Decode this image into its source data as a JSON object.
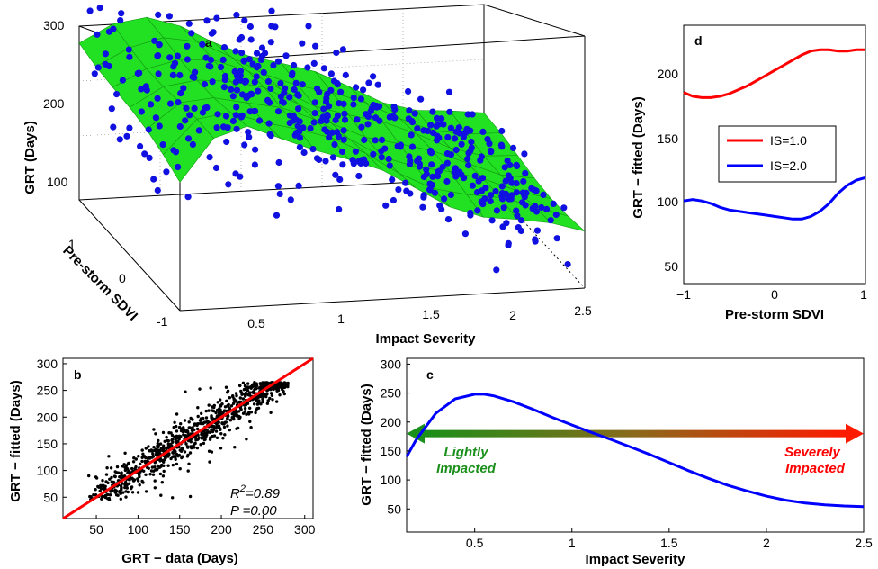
{
  "colors": {
    "points_a": "#1010e0",
    "surface": "#22e022",
    "red": "#ff0000",
    "blue": "#0000ff",
    "green": "#1a8f1a",
    "black": "#000000"
  },
  "chart_data": [
    {
      "panel": "a",
      "type": "scatter",
      "surface": "fitted 3-D surface (green) with data points (blue)",
      "xlabel": "Impact Severity",
      "ylabel": "Pre-storm SDVI",
      "zlabel": "GRT (Days)",
      "x_ticks": [
        "0.5",
        "1",
        "1.5",
        "2",
        "2.5"
      ],
      "y_ticks": [
        "-1",
        "0",
        "1"
      ],
      "z_ticks": [
        "100",
        "200",
        "300"
      ],
      "xlim": [
        0.1,
        2.5
      ],
      "ylim": [
        -1,
        1
      ],
      "zlim": [
        0,
        300
      ],
      "surface_profile": {
        "x": [
          0.1,
          0.3,
          0.5,
          0.7,
          0.9,
          1.1,
          1.3,
          1.5,
          1.7,
          1.9,
          2.1,
          2.3,
          2.5
        ],
        "z_front": [
          155,
          200,
          215,
          205,
          190,
          170,
          150,
          130,
          112,
          97,
          85,
          75,
          68
        ],
        "z_back": [
          195,
          210,
          210,
          200,
          185,
          168,
          150,
          133,
          117,
          102,
          90,
          80,
          72
        ]
      }
    },
    {
      "panel": "b",
      "type": "scatter",
      "xlabel": "GRT − data (Days)",
      "ylabel": "GRT − fitted (Days)",
      "x_ticks": [
        "50",
        "100",
        "150",
        "200",
        "250",
        "300"
      ],
      "y_ticks": [
        "50",
        "100",
        "150",
        "200",
        "250",
        "300"
      ],
      "xlim": [
        10,
        310
      ],
      "ylim": [
        10,
        310
      ],
      "fit_line": {
        "x": [
          10,
          310
        ],
        "y": [
          10,
          310
        ]
      },
      "stats": {
        "r2": "=0.89",
        "p": "P =0.00"
      }
    },
    {
      "panel": "c",
      "type": "line",
      "xlabel": "Impact Severity",
      "ylabel": "GRT − fitted (Days)",
      "x_ticks": [
        "0.5",
        "1",
        "1.5",
        "2",
        "2.5"
      ],
      "y_ticks": [
        "50",
        "100",
        "150",
        "200",
        "250",
        "300"
      ],
      "xlim": [
        0.15,
        2.5
      ],
      "ylim": [
        10,
        310
      ],
      "series": [
        {
          "x": [
            0.15,
            0.2,
            0.3,
            0.4,
            0.5,
            0.55,
            0.6,
            0.7,
            0.8,
            0.9,
            1.0,
            1.1,
            1.2,
            1.3,
            1.4,
            1.5,
            1.6,
            1.7,
            1.8,
            1.9,
            2.0,
            2.1,
            2.2,
            2.3,
            2.4,
            2.5
          ],
          "values": [
            140,
            170,
            215,
            240,
            248,
            248,
            245,
            235,
            222,
            208,
            195,
            182,
            170,
            157,
            144,
            130,
            116,
            103,
            91,
            81,
            72,
            65,
            60,
            57,
            55,
            54
          ]
        }
      ],
      "arrow": {
        "x_start": 0.15,
        "x_end": 2.5,
        "y": 180
      },
      "annotations": {
        "left_1": "Lightly",
        "left_2": "Impacted",
        "right_1": "Severely",
        "right_2": "Impacted"
      }
    },
    {
      "panel": "d",
      "type": "line",
      "xlabel": "Pre-storm SDVI",
      "ylabel": "GRT − fitted (Days)",
      "x_ticks": [
        "−1",
        "0",
        "1"
      ],
      "y_ticks": [
        "50",
        "100",
        "150",
        "200"
      ],
      "xlim": [
        -1,
        1
      ],
      "ylim": [
        30,
        230
      ],
      "series": [
        {
          "name": "IS=1.0",
          "x": [
            -1,
            -0.9,
            -0.8,
            -0.7,
            -0.6,
            -0.5,
            -0.4,
            -0.3,
            -0.2,
            -0.1,
            0,
            0.1,
            0.2,
            0.3,
            0.4,
            0.5,
            0.6,
            0.7,
            0.8,
            0.9,
            1.0
          ],
          "values": [
            178,
            175,
            174,
            174,
            175,
            177,
            180,
            183,
            187,
            191,
            195,
            199,
            203,
            207,
            210,
            211,
            211,
            210,
            210,
            211,
            211
          ]
        },
        {
          "name": "IS=2.0",
          "x": [
            -1,
            -0.9,
            -0.8,
            -0.7,
            -0.6,
            -0.5,
            -0.4,
            -0.3,
            -0.2,
            -0.1,
            0,
            0.1,
            0.2,
            0.3,
            0.4,
            0.5,
            0.6,
            0.7,
            0.8,
            0.9,
            1.0
          ],
          "values": [
            94,
            95,
            94,
            92,
            89,
            87,
            86,
            85,
            84,
            83,
            82,
            81,
            80,
            80,
            82,
            86,
            92,
            100,
            106,
            110,
            112
          ]
        }
      ],
      "legend": "inside-right"
    }
  ]
}
